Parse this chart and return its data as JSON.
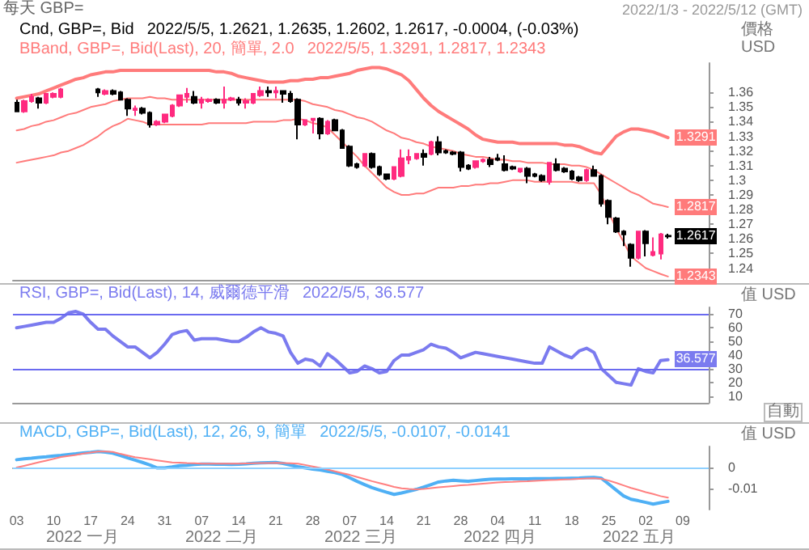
{
  "chart_data": [
    {
      "type": "candlestick",
      "title": "每天 GBP=",
      "subtitle": "2022/1/3 - 2022/5/12 (GMT)",
      "ylabel": "價格 USD",
      "tick_labels": "y",
      "annotations": [
        "Cnd, GBP=, Bid",
        "2022/5/5, 1.2621, 1.2635, 1.2602, 1.2617, -0.0004, (-0.03%)",
        "BBand, GBP=, Bid(Last), 20, 簡單, 2.0",
        "2022/5/5, 1.3291, 1.2817, 1.2343"
      ],
      "value_labels": [
        null,
        null,
        null,
        null,
        null,
        null,
        null,
        null,
        null,
        null,
        null,
        null,
        null,
        null,
        null,
        null,
        null,
        null,
        null,
        null,
        null,
        null,
        null,
        null,
        null,
        null,
        null,
        null,
        null,
        null,
        null,
        null,
        null,
        null,
        null,
        null,
        null,
        null,
        null,
        null,
        null,
        null,
        null,
        null,
        null,
        null,
        null,
        null,
        null,
        null,
        null,
        null,
        null,
        null,
        null,
        null,
        null,
        null,
        null,
        null,
        null,
        null,
        null,
        null,
        null,
        null,
        null,
        null,
        null,
        null,
        null,
        null,
        null,
        null,
        null,
        null,
        null,
        null,
        null,
        null,
        null,
        null,
        null,
        null,
        null,
        null,
        null,
        null,
        "1.2617",
        null,
        null,
        null,
        null,
        null
      ],
      "categories": [
        "03",
        null,
        null,
        null,
        null,
        "10",
        null,
        null,
        null,
        null,
        "17",
        null,
        null,
        null,
        null,
        "24",
        null,
        null,
        null,
        null,
        "31",
        null,
        null,
        null,
        null,
        "07",
        null,
        null,
        null,
        null,
        "14",
        null,
        null,
        null,
        null,
        "21",
        null,
        null,
        null,
        null,
        "28",
        null,
        null,
        null,
        null,
        "07",
        null,
        null,
        null,
        null,
        "14",
        null,
        null,
        null,
        null,
        "21",
        null,
        null,
        null,
        null,
        "28",
        null,
        null,
        null,
        null,
        "04",
        null,
        null,
        null,
        null,
        "11",
        null,
        null,
        null,
        null,
        "18",
        null,
        null,
        null,
        null,
        "25",
        null,
        null,
        null,
        null,
        "02",
        null,
        null,
        null,
        null,
        "09",
        null,
        null,
        null
      ],
      "ylim": [
        1.232,
        1.38
      ],
      "yticks": [
        1.24,
        1.25,
        1.26,
        1.27,
        1.28,
        1.29,
        1.3,
        1.31,
        1.32,
        1.33,
        1.34,
        1.35,
        1.36
      ],
      "ohlc": [
        [
          1.353,
          1.355,
          1.347,
          1.347
        ],
        [
          1.347,
          1.355,
          1.346,
          1.354
        ],
        [
          1.354,
          1.359,
          1.353,
          1.357
        ],
        [
          1.356,
          1.357,
          1.349,
          1.353
        ],
        [
          1.353,
          1.359,
          1.352,
          1.359
        ],
        [
          1.357,
          1.36,
          1.356,
          1.359
        ],
        [
          1.357,
          1.363,
          1.356,
          1.362
        ],
        null,
        null,
        null,
        null,
        [
          1.362,
          1.363,
          1.357,
          1.36
        ],
        [
          1.359,
          1.362,
          1.358,
          1.361
        ],
        [
          1.361,
          1.362,
          1.358,
          1.359
        ],
        [
          1.36,
          1.361,
          1.355,
          1.355
        ],
        [
          1.355,
          1.356,
          1.344,
          1.349
        ],
        [
          1.348,
          1.351,
          1.344,
          1.349
        ],
        [
          1.349,
          1.35,
          1.345,
          1.346
        ],
        [
          1.346,
          1.347,
          1.336,
          1.338
        ],
        [
          1.338,
          1.341,
          1.337,
          1.34
        ],
        [
          1.34,
          1.345,
          1.339,
          1.345
        ],
        [
          1.344,
          1.352,
          1.343,
          1.351
        ],
        [
          1.351,
          1.358,
          1.35,
          1.358
        ],
        [
          1.357,
          1.363,
          1.353,
          1.359
        ],
        [
          1.357,
          1.361,
          1.352,
          1.353
        ],
        [
          1.353,
          1.357,
          1.349,
          1.355
        ],
        [
          1.354,
          1.356,
          1.353,
          1.355
        ],
        [
          1.355,
          1.356,
          1.352,
          1.353
        ],
        [
          1.353,
          1.364,
          1.349,
          1.355
        ],
        [
          1.355,
          1.357,
          1.354,
          1.356
        ],
        [
          1.355,
          1.357,
          1.351,
          1.353
        ],
        [
          1.353,
          1.356,
          1.349,
          1.354
        ],
        [
          1.353,
          1.359,
          1.352,
          1.359
        ],
        [
          1.358,
          1.364,
          1.357,
          1.361
        ],
        [
          1.361,
          1.364,
          1.357,
          1.36
        ],
        [
          1.36,
          1.364,
          1.356,
          1.361
        ],
        [
          1.361,
          1.361,
          1.353,
          1.359
        ],
        [
          1.359,
          1.361,
          1.353,
          1.354
        ],
        [
          1.355,
          1.356,
          1.328,
          1.338
        ],
        [
          1.338,
          1.341,
          1.337,
          1.341
        ],
        [
          1.341,
          1.342,
          1.332,
          1.342
        ],
        [
          1.342,
          1.343,
          1.328,
          1.332
        ],
        [
          1.332,
          1.341,
          1.331,
          1.34
        ],
        [
          1.341,
          1.342,
          1.334,
          1.334
        ],
        [
          1.334,
          1.335,
          1.322,
          1.322
        ],
        [
          1.323,
          1.324,
          1.309,
          1.31
        ],
        [
          1.311,
          1.312,
          1.308,
          1.309
        ],
        [
          1.31,
          1.318,
          1.309,
          1.318
        ],
        [
          1.318,
          1.319,
          1.308,
          1.309
        ],
        [
          1.309,
          1.31,
          1.303,
          1.304
        ],
        [
          1.304,
          1.304,
          1.3,
          1.301
        ],
        [
          1.301,
          1.309,
          1.3,
          1.309
        ],
        [
          1.303,
          1.321,
          1.302,
          1.315
        ],
        [
          1.314,
          1.321,
          1.311,
          1.316
        ],
        [
          1.315,
          1.318,
          1.314,
          1.318
        ],
        [
          1.318,
          1.321,
          1.31,
          1.316
        ],
        [
          1.318,
          1.327,
          1.317,
          1.326
        ],
        [
          1.326,
          1.33,
          1.317,
          1.319
        ],
        [
          1.32,
          1.321,
          1.318,
          1.319
        ],
        [
          1.319,
          1.32,
          1.317,
          1.318
        ],
        [
          1.319,
          1.32,
          1.306,
          1.309
        ],
        [
          1.31,
          1.311,
          1.307,
          1.308
        ],
        [
          1.309,
          1.313,
          1.308,
          1.313
        ],
        [
          1.313,
          1.315,
          1.312,
          1.314
        ],
        [
          1.314,
          1.316,
          1.309,
          1.311
        ],
        [
          1.315,
          1.318,
          1.313,
          1.314
        ],
        [
          1.311,
          1.317,
          1.306,
          1.307
        ],
        [
          1.309,
          1.31,
          1.307,
          1.308
        ],
        [
          1.306,
          1.308,
          1.305,
          1.308
        ],
        [
          1.308,
          1.309,
          1.298,
          1.303
        ],
        [
          1.304,
          1.305,
          1.302,
          1.303
        ],
        [
          1.303,
          1.304,
          1.299,
          1.3
        ],
        [
          1.299,
          1.312,
          1.297,
          1.312
        ],
        [
          1.311,
          1.315,
          1.306,
          1.307
        ],
        [
          1.308,
          1.309,
          1.305,
          1.306
        ],
        [
          1.306,
          1.307,
          1.3,
          1.301
        ],
        [
          1.302,
          1.303,
          1.299,
          1.3
        ],
        [
          1.3,
          1.308,
          1.299,
          1.307
        ],
        [
          1.307,
          1.31,
          1.303,
          1.303
        ],
        [
          1.303,
          1.304,
          1.282,
          1.284
        ],
        [
          1.286,
          1.287,
          1.27,
          1.275
        ],
        [
          1.274,
          1.275,
          1.264,
          1.265
        ],
        [
          1.265,
          1.266,
          1.255,
          1.263
        ],
        [
          1.256,
          1.257,
          1.241,
          1.247
        ],
        [
          1.247,
          1.265,
          1.246,
          1.265
        ],
        [
          1.265,
          1.266,
          1.248,
          1.257
        ],
        [
          1.249,
          1.261,
          1.248,
          1.251
        ],
        [
          1.25,
          1.264,
          1.246,
          1.263
        ],
        [
          1.2621,
          1.2635,
          1.2602,
          1.2617
        ],
        null,
        null,
        null,
        null,
        null
      ],
      "colors": [
        "#000000",
        "#ff2a7f",
        "#ff2a7f",
        "#000000",
        "#ff2a7f",
        "#ff2a7f",
        "#ff2a7f",
        null,
        null,
        null,
        null,
        "#000000",
        "#ff2a7f",
        "#000000",
        "#000000",
        "#000000",
        "#ff2a7f",
        "#000000",
        "#000000",
        "#ff2a7f",
        "#ff2a7f",
        "#ff2a7f",
        "#ff2a7f",
        "#ff2a7f",
        "#000000",
        "#ff2a7f",
        "#ff2a7f",
        "#000000",
        "#ff2a7f",
        "#ff2a7f",
        "#000000",
        "#ff2a7f",
        "#ff2a7f",
        "#ff2a7f",
        "#000000",
        "#ff2a7f",
        "#000000",
        "#000000",
        "#000000",
        "#ff2a7f",
        "#ff2a7f",
        "#000000",
        "#ff2a7f",
        "#000000",
        "#000000",
        "#000000",
        "#000000",
        "#ff2a7f",
        "#000000",
        "#000000",
        "#000000",
        "#ff2a7f",
        "#ff2a7f",
        "#ff2a7f",
        "#ff2a7f",
        "#000000",
        "#ff2a7f",
        "#000000",
        "#000000",
        "#000000",
        "#000000",
        "#000000",
        "#ff2a7f",
        "#ff2a7f",
        "#000000",
        "#000000",
        "#000000",
        "#000000",
        "#ff2a7f",
        "#000000",
        "#000000",
        "#000000",
        "#ff2a7f",
        "#000000",
        "#000000",
        "#000000",
        "#000000",
        "#ff2a7f",
        "#000000",
        "#000000",
        "#000000",
        "#000000",
        "#000000",
        "#000000",
        "#ff2a7f",
        "#000000",
        "#ff2a7f",
        "#ff2a7f",
        "#000000",
        null,
        null,
        null,
        null,
        null
      ],
      "series": [
        {
          "type": "line",
          "color": "#ff7b7b",
          "values": [
            1.356,
            1.357,
            1.358,
            1.359,
            1.361,
            1.363,
            1.365,
            1.367,
            1.369,
            1.37,
            1.372,
            1.373,
            1.374,
            1.374,
            1.375,
            1.375,
            1.375,
            1.375,
            1.375,
            1.375,
            1.375,
            1.375,
            1.375,
            1.375,
            1.375,
            1.375,
            1.375,
            1.374,
            1.374,
            1.373,
            1.371,
            1.37,
            1.369,
            1.368,
            1.367,
            1.367,
            1.367,
            1.368,
            1.368,
            1.369,
            1.369,
            1.37,
            1.37,
            1.371,
            1.372,
            1.373,
            1.375,
            1.376,
            1.377,
            1.377,
            1.376,
            1.374,
            1.372,
            1.368,
            1.362,
            1.356,
            1.351,
            1.347,
            1.344,
            1.341,
            1.338,
            1.335,
            1.331,
            1.328,
            1.327,
            1.326,
            1.326,
            1.326,
            1.325,
            1.325,
            1.325,
            1.325,
            1.325,
            1.325,
            1.324,
            1.324,
            1.323,
            1.321,
            1.319,
            1.318,
            1.324,
            1.33,
            1.333,
            1.335,
            1.335,
            1.334,
            1.333,
            1.331,
            1.3291,
            null,
            null,
            null,
            null,
            null
          ],
          "value_labels": [
            null,
            null,
            null,
            null,
            null,
            null,
            null,
            null,
            null,
            null,
            null,
            null,
            null,
            null,
            null,
            null,
            null,
            null,
            null,
            null,
            null,
            null,
            null,
            null,
            null,
            null,
            null,
            null,
            null,
            null,
            null,
            null,
            null,
            null,
            null,
            null,
            null,
            null,
            null,
            null,
            null,
            null,
            null,
            null,
            null,
            null,
            null,
            null,
            null,
            null,
            null,
            null,
            null,
            null,
            null,
            null,
            null,
            null,
            null,
            null,
            null,
            null,
            null,
            null,
            null,
            null,
            null,
            null,
            null,
            null,
            null,
            null,
            null,
            null,
            null,
            null,
            null,
            null,
            null,
            null,
            null,
            null,
            null,
            null,
            null,
            null,
            null,
            null,
            "1.3291",
            null,
            null,
            null,
            null,
            null
          ]
        },
        {
          "type": "line",
          "color": "#ff7b7b",
          "values": [
            1.334,
            1.335,
            1.337,
            1.338,
            1.34,
            1.341,
            1.343,
            1.345,
            1.346,
            1.348,
            1.35,
            1.351,
            1.352,
            1.354,
            1.355,
            1.356,
            1.356,
            1.356,
            1.357,
            1.356,
            1.356,
            1.355,
            1.355,
            1.355,
            1.355,
            1.355,
            1.355,
            1.355,
            1.355,
            1.355,
            1.355,
            1.355,
            1.355,
            1.355,
            1.355,
            1.355,
            1.355,
            1.355,
            1.355,
            1.354,
            1.352,
            1.351,
            1.35,
            1.348,
            1.347,
            1.345,
            1.343,
            1.342,
            1.34,
            1.337,
            1.334,
            1.332,
            1.329,
            1.328,
            1.326,
            1.325,
            1.323,
            1.322,
            1.321,
            1.32,
            1.318,
            1.317,
            1.316,
            1.316,
            1.315,
            1.314,
            1.314,
            1.313,
            1.313,
            1.312,
            1.312,
            1.312,
            1.311,
            1.311,
            1.311,
            1.31,
            1.31,
            1.309,
            1.307,
            1.304,
            1.301,
            1.298,
            1.295,
            1.292,
            1.29,
            1.287,
            1.284,
            1.283,
            1.2817,
            null,
            null,
            null,
            null,
            null
          ],
          "value_labels": [
            null,
            null,
            null,
            null,
            null,
            null,
            null,
            null,
            null,
            null,
            null,
            null,
            null,
            null,
            null,
            null,
            null,
            null,
            null,
            null,
            null,
            null,
            null,
            null,
            null,
            null,
            null,
            null,
            null,
            null,
            null,
            null,
            null,
            null,
            null,
            null,
            null,
            null,
            null,
            null,
            null,
            null,
            null,
            null,
            null,
            null,
            null,
            null,
            null,
            null,
            null,
            null,
            null,
            null,
            null,
            null,
            null,
            null,
            null,
            null,
            null,
            null,
            null,
            null,
            null,
            null,
            null,
            null,
            null,
            null,
            null,
            null,
            null,
            null,
            null,
            null,
            null,
            null,
            null,
            null,
            null,
            null,
            null,
            null,
            null,
            null,
            null,
            null,
            "1.2817",
            null,
            null,
            null,
            null,
            null
          ]
        },
        {
          "type": "line",
          "color": "#ff7b7b",
          "values": [
            1.312,
            1.313,
            1.314,
            1.315,
            1.316,
            1.317,
            1.319,
            1.32,
            1.322,
            1.324,
            1.327,
            1.33,
            1.334,
            1.337,
            1.339,
            1.342,
            1.341,
            1.34,
            1.338,
            1.338,
            1.338,
            1.338,
            1.338,
            1.338,
            1.338,
            1.338,
            1.339,
            1.339,
            1.339,
            1.339,
            1.339,
            1.339,
            1.34,
            1.34,
            1.34,
            1.34,
            1.341,
            1.341,
            1.342,
            1.341,
            1.339,
            1.338,
            1.336,
            1.331,
            1.326,
            1.321,
            1.316,
            1.31,
            1.305,
            1.3,
            1.295,
            1.292,
            1.29,
            1.29,
            1.291,
            1.291,
            1.293,
            1.295,
            1.295,
            1.295,
            1.296,
            1.296,
            1.297,
            1.297,
            1.298,
            1.298,
            1.299,
            1.3,
            1.3,
            1.3,
            1.299,
            1.299,
            1.299,
            1.299,
            1.299,
            1.299,
            1.298,
            1.298,
            1.298,
            1.29,
            1.278,
            1.267,
            1.258,
            1.248,
            1.244,
            1.24,
            1.238,
            1.236,
            1.2343,
            null,
            null,
            null,
            null,
            null
          ],
          "value_labels": [
            null,
            null,
            null,
            null,
            null,
            null,
            null,
            null,
            null,
            null,
            null,
            null,
            null,
            null,
            null,
            null,
            null,
            null,
            null,
            null,
            null,
            null,
            null,
            null,
            null,
            null,
            null,
            null,
            null,
            null,
            null,
            null,
            null,
            null,
            null,
            null,
            null,
            null,
            null,
            null,
            null,
            null,
            null,
            null,
            null,
            null,
            null,
            null,
            null,
            null,
            null,
            null,
            null,
            null,
            null,
            null,
            null,
            null,
            null,
            null,
            null,
            null,
            null,
            null,
            null,
            null,
            null,
            null,
            null,
            null,
            null,
            null,
            null,
            null,
            null,
            null,
            null,
            null,
            null,
            null,
            null,
            null,
            null,
            null,
            null,
            null,
            null,
            null,
            "1.2343",
            null,
            null,
            null,
            null,
            null
          ]
        }
      ]
    },
    {
      "type": "line",
      "ylabel": "值 USD",
      "tick_labels": "y",
      "annotations": [
        "RSI, GBP=, Bid(Last), 14, 威爾德平滑",
        "2022/5/5, 36.577",
        "自動"
      ],
      "categories": [
        "03",
        null,
        null,
        null,
        null,
        "10",
        null,
        null,
        null,
        null,
        "17",
        null,
        null,
        null,
        null,
        "24",
        null,
        null,
        null,
        null,
        "31",
        null,
        null,
        null,
        null,
        "07",
        null,
        null,
        null,
        null,
        "14",
        null,
        null,
        null,
        null,
        "21",
        null,
        null,
        null,
        null,
        "28",
        null,
        null,
        null,
        null,
        "07",
        null,
        null,
        null,
        null,
        "14",
        null,
        null,
        null,
        null,
        "21",
        null,
        null,
        null,
        null,
        "28",
        null,
        null,
        null,
        null,
        "04",
        null,
        null,
        null,
        null,
        "11",
        null,
        null,
        null,
        null,
        "18",
        null,
        null,
        null,
        null,
        "25",
        null,
        null,
        null,
        null,
        "02",
        null,
        null,
        null,
        null,
        "09",
        null,
        null,
        null
      ],
      "ylim": [
        5,
        75
      ],
      "yticks": [
        10,
        20,
        30,
        40,
        50,
        60,
        70
      ],
      "ref_lines": [
        {
          "axis": "y",
          "value": 70,
          "color": "#6a6af0"
        },
        {
          "axis": "y",
          "value": 30,
          "color": "#6a6af0"
        }
      ],
      "series": [
        {
          "color": "#7b7bef",
          "values": [
            60,
            61,
            62,
            63,
            64,
            64,
            67,
            71,
            72,
            70,
            64,
            59,
            59,
            54,
            50,
            46,
            46,
            42,
            38,
            42,
            48,
            55,
            57,
            58,
            51,
            52,
            52,
            52,
            51,
            50,
            50,
            53,
            57,
            60,
            57,
            56,
            54,
            42,
            34,
            37,
            36,
            32,
            41,
            37,
            32,
            27,
            28,
            32,
            30,
            27,
            28,
            36,
            40,
            40,
            42,
            44,
            48,
            46,
            45,
            42,
            38,
            40,
            42,
            41,
            40,
            39,
            38,
            37,
            36,
            35,
            34,
            34,
            46,
            43,
            40,
            38,
            43,
            45,
            42,
            30,
            25,
            20,
            19,
            18,
            30,
            28,
            27,
            36,
            36.577,
            null,
            null,
            null,
            null,
            null
          ],
          "value_labels": [
            null,
            null,
            null,
            null,
            null,
            null,
            null,
            null,
            null,
            null,
            null,
            null,
            null,
            null,
            null,
            null,
            null,
            null,
            null,
            null,
            null,
            null,
            null,
            null,
            null,
            null,
            null,
            null,
            null,
            null,
            null,
            null,
            null,
            null,
            null,
            null,
            null,
            null,
            null,
            null,
            null,
            null,
            null,
            null,
            null,
            null,
            null,
            null,
            null,
            null,
            null,
            null,
            null,
            null,
            null,
            null,
            null,
            null,
            null,
            null,
            null,
            null,
            null,
            null,
            null,
            null,
            null,
            null,
            null,
            null,
            null,
            null,
            null,
            null,
            null,
            null,
            null,
            null,
            null,
            null,
            null,
            null,
            null,
            null,
            null,
            null,
            null,
            null,
            "36.577",
            null,
            null,
            null,
            null,
            null
          ]
        }
      ]
    },
    {
      "type": "line",
      "ylabel": "值 USD",
      "annotations": [
        "MACD, GBP=, Bid(Last), 12, 26, 9, 簡單",
        "2022/5/5, -0.0107, -0.0141",
        "2022 一月",
        "2022 二月",
        "2022 三月",
        "2022 四月",
        "2022 五月"
      ],
      "categories": [
        "03",
        null,
        null,
        null,
        null,
        "10",
        null,
        null,
        null,
        null,
        "17",
        null,
        null,
        null,
        null,
        "24",
        null,
        null,
        null,
        null,
        "31",
        null,
        null,
        null,
        null,
        "07",
        null,
        null,
        null,
        null,
        "14",
        null,
        null,
        null,
        null,
        "21",
        null,
        null,
        null,
        null,
        "28",
        null,
        null,
        null,
        null,
        "07",
        null,
        null,
        null,
        null,
        "14",
        null,
        null,
        null,
        null,
        "21",
        null,
        null,
        null,
        null,
        "28",
        null,
        null,
        null,
        null,
        "04",
        null,
        null,
        null,
        null,
        "11",
        null,
        null,
        null,
        null,
        "18",
        null,
        null,
        null,
        null,
        "25",
        null,
        null,
        null,
        null,
        "02",
        null,
        null,
        null,
        null,
        "09",
        null,
        null,
        null
      ],
      "ylim": [
        -0.02,
        0.01
      ],
      "yticks": [
        0,
        -0.01
      ],
      "ref_lines": [
        {
          "axis": "y",
          "value": 0,
          "color": "#8fd0ff"
        }
      ],
      "series": [
        {
          "color": "#4fb0f5",
          "values": [
            0.0037,
            0.0041,
            0.0044,
            0.0048,
            0.0051,
            0.0055,
            0.0058,
            0.0062,
            0.0065,
            0.0069,
            0.0072,
            0.0076,
            0.0073,
            0.0068,
            0.0057,
            0.0046,
            0.0035,
            0.0024,
            0.0012,
            -0.0002,
            -0.0002,
            0.0003,
            0.0009,
            0.0011,
            0.0014,
            0.0016,
            0.0016,
            0.0015,
            0.0015,
            0.0014,
            0.0015,
            0.0017,
            0.002,
            0.0022,
            0.0023,
            0.0024,
            0.0019,
            0.0011,
            0.0004,
            -0.0002,
            -0.0008,
            -0.0012,
            -0.0018,
            -0.0024,
            -0.0033,
            -0.0049,
            -0.0066,
            -0.0081,
            -0.0096,
            -0.0107,
            -0.0118,
            -0.0128,
            -0.0121,
            -0.0113,
            -0.0104,
            -0.0093,
            -0.0081,
            -0.0069,
            -0.0064,
            -0.0061,
            -0.0063,
            -0.0065,
            -0.0062,
            -0.0059,
            -0.0056,
            -0.0055,
            -0.0055,
            -0.0054,
            -0.0054,
            -0.0054,
            -0.0053,
            -0.0053,
            -0.0053,
            -0.0052,
            -0.0052,
            -0.0051,
            -0.005,
            -0.0048,
            -0.0047,
            -0.0051,
            -0.0079,
            -0.0107,
            -0.0135,
            -0.0151,
            -0.0158,
            -0.0166,
            -0.0174,
            -0.0167,
            -0.0161,
            null,
            null,
            null,
            null,
            null
          ]
        },
        {
          "color": "#ff8080",
          "values": [
            0,
            0.0008,
            0.0016,
            0.0025,
            0.0033,
            0.0041,
            0.005,
            0.0055,
            0.006,
            0.0066,
            0.0071,
            0.0076,
            0.0076,
            0.0074,
            0.0065,
            0.0057,
            0.0049,
            0.0044,
            0.0039,
            0.0034,
            0.0029,
            0.0024,
            0.0023,
            0.0021,
            0.002,
            0.0018,
            0.0018,
            0.0018,
            0.0018,
            0.0018,
            0.0018,
            0.0019,
            0.002,
            0.0021,
            0.0021,
            0.0022,
            0.0021,
            0.002,
            0.0018,
            0.0012,
            0.0005,
            -0.0002,
            -0.001,
            -0.0018,
            -0.0027,
            -0.0035,
            -0.0045,
            -0.0055,
            -0.0065,
            -0.0074,
            -0.0083,
            -0.0092,
            -0.0099,
            -0.0102,
            -0.0104,
            -0.0102,
            -0.0098,
            -0.0094,
            -0.0091,
            -0.0088,
            -0.0085,
            -0.0083,
            -0.008,
            -0.0077,
            -0.0074,
            -0.0071,
            -0.0069,
            -0.0068,
            -0.0066,
            -0.0065,
            -0.0063,
            -0.0062,
            -0.006,
            -0.0059,
            -0.0057,
            -0.0056,
            -0.0054,
            -0.0052,
            -0.0051,
            -0.0054,
            -0.0062,
            -0.0073,
            -0.0085,
            -0.0097,
            -0.0107,
            -0.0117,
            -0.0126,
            -0.0136,
            -0.0143,
            null,
            null,
            null,
            null,
            null
          ]
        }
      ]
    }
  ]
}
